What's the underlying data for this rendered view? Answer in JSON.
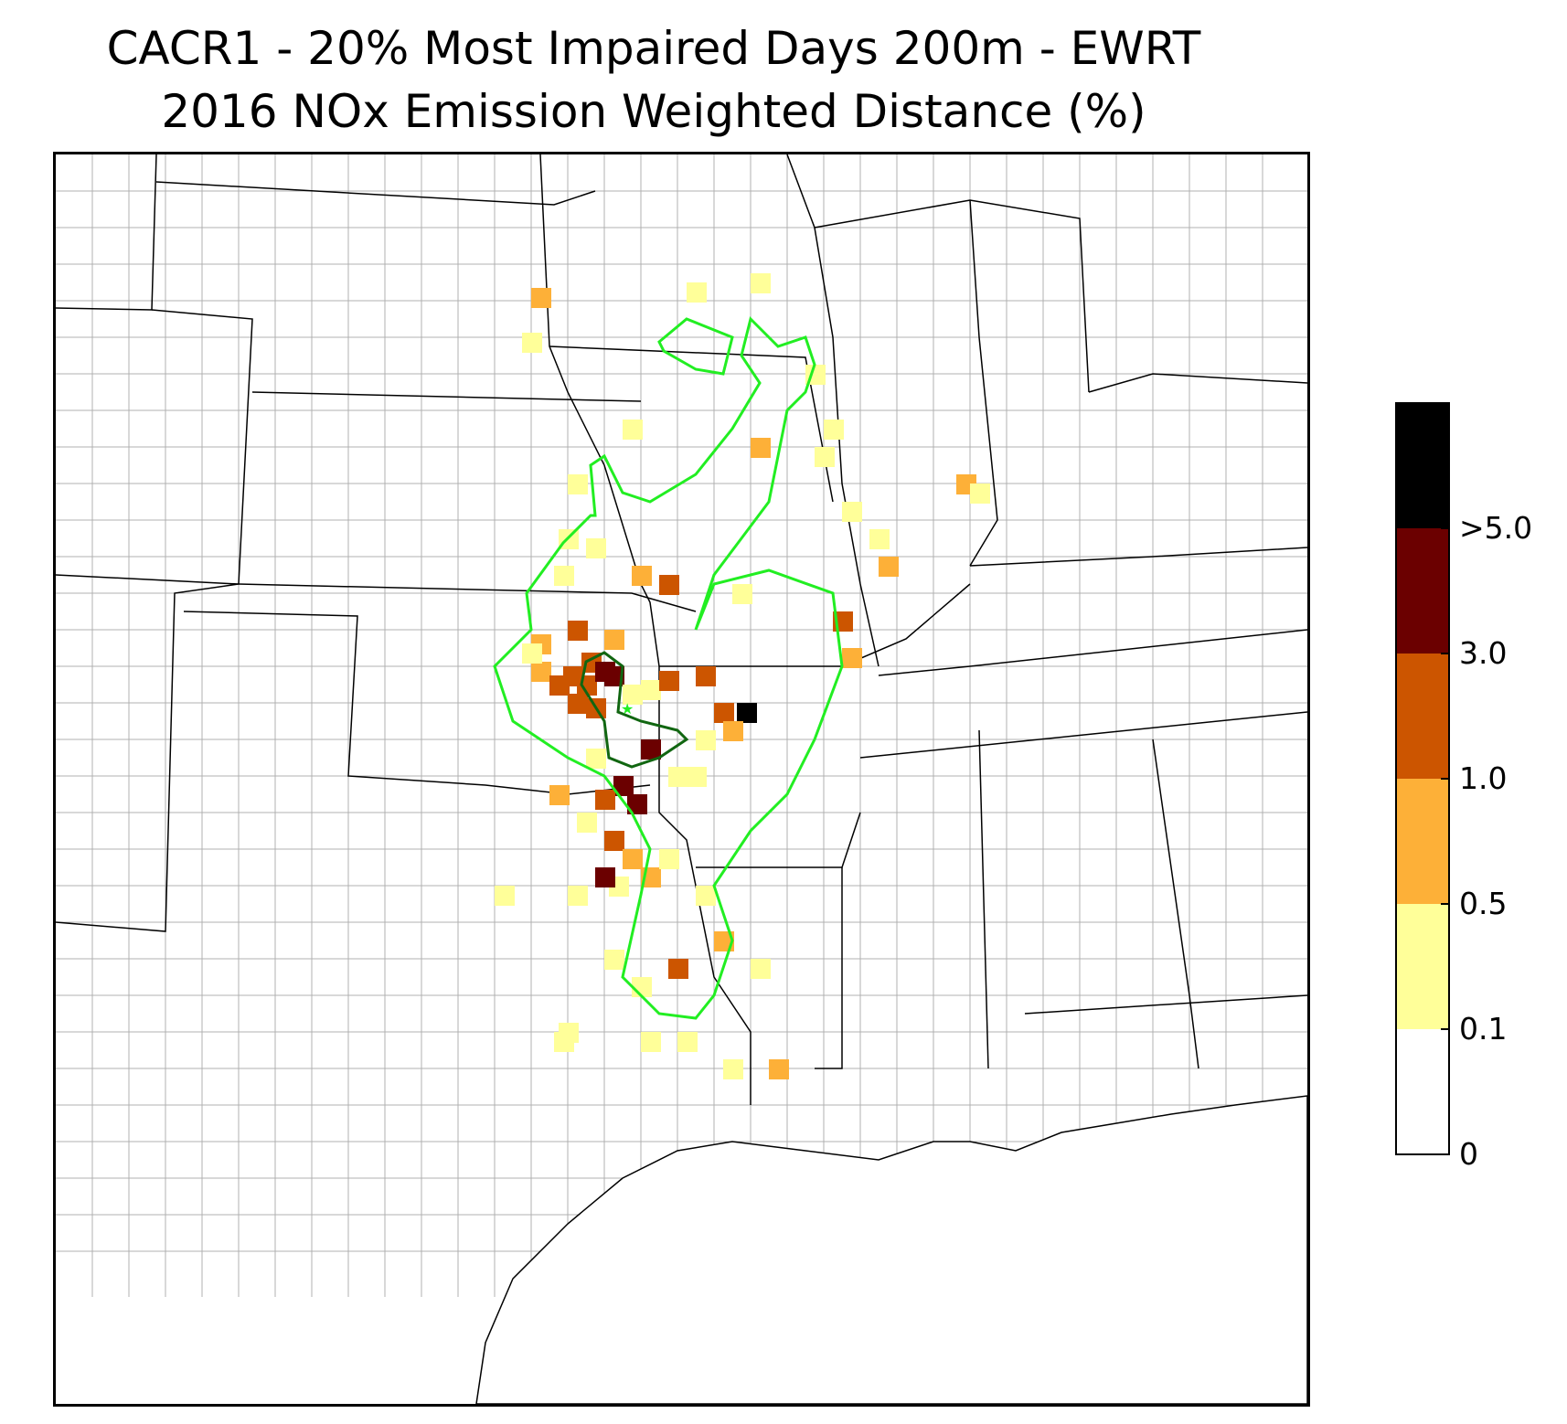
{
  "title": {
    "line1": "CACR1 - 20% Most Impaired Days 200m - EWRT",
    "line2": "2016 NOx Emission Weighted Distance (%)"
  },
  "colorbar": {
    "tick_labels": [
      "0",
      "0.1",
      "0.5",
      "1.0",
      "3.0",
      ">5.0"
    ],
    "colors": [
      "#ffffff",
      "#ffff99",
      "#fdb038",
      "#cc5500",
      "#6b0000",
      "#000000"
    ]
  },
  "map": {
    "receptor": "CACR1",
    "contour_colors": {
      "outer": "#22ee22",
      "inner": "#116611",
      "state_line": "#000000",
      "county_line": "#9a9a9a"
    }
  }
}
